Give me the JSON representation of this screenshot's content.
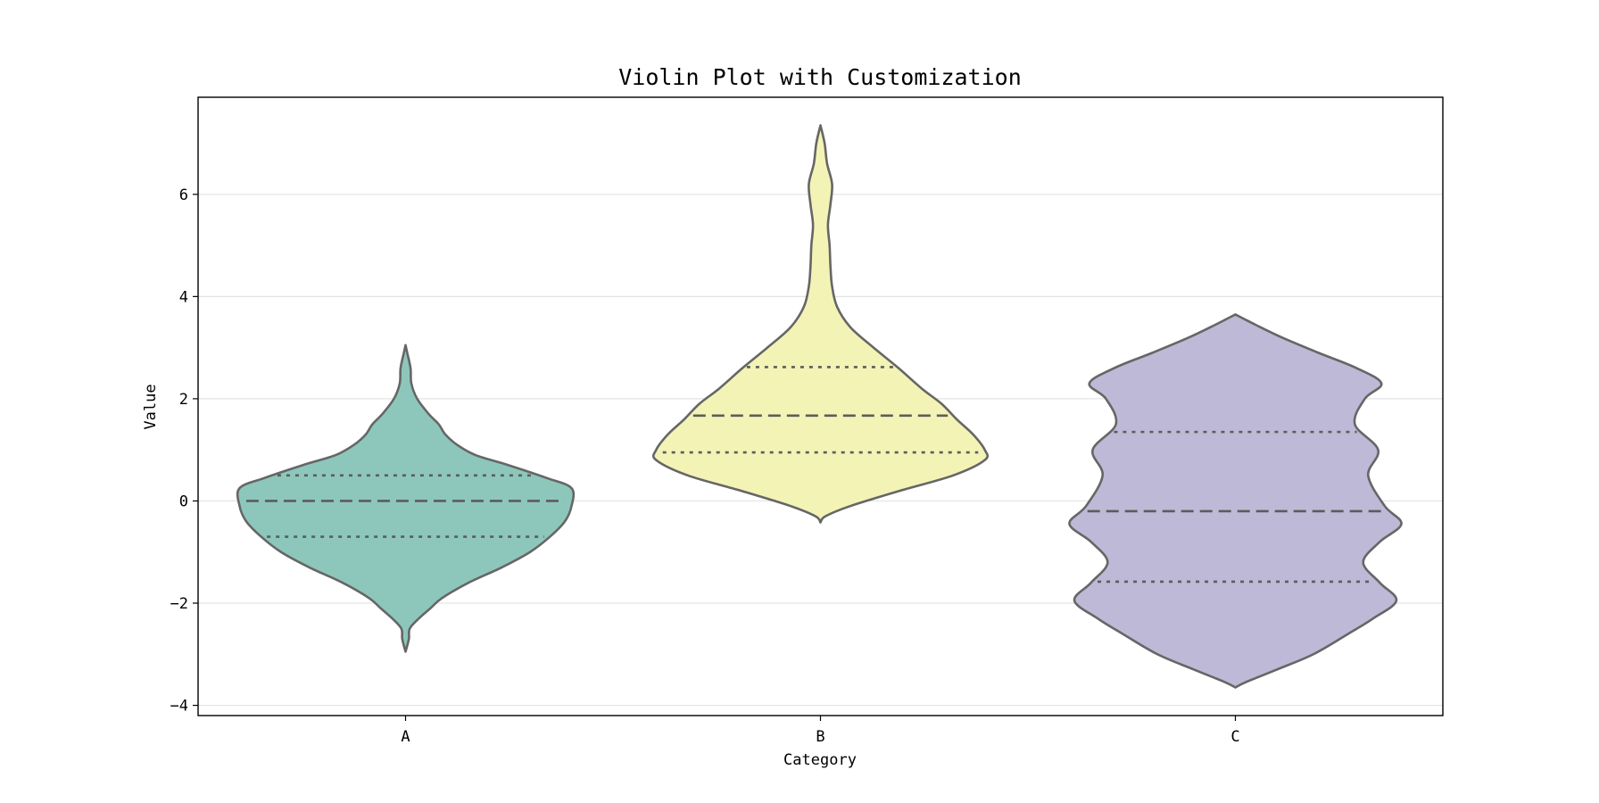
{
  "chart_data": {
    "type": "violin",
    "title": "Violin Plot with Customization",
    "xlabel": "Category",
    "ylabel": "Value",
    "categories": [
      "A",
      "B",
      "C"
    ],
    "ylim": [
      -4.2,
      7.9
    ],
    "yticks": [
      -4,
      -2,
      0,
      2,
      4,
      6
    ],
    "grid": "horizontal",
    "inner": "quartile",
    "series": [
      {
        "category": "A",
        "color": "#8dc7bb",
        "min": -2.95,
        "max": 3.05,
        "q1": -0.7,
        "median": 0.0,
        "q3": 0.5,
        "density": [
          [
            -2.95,
            0.0
          ],
          [
            -2.7,
            0.02
          ],
          [
            -2.5,
            0.025
          ],
          [
            -2.3,
            0.08
          ],
          [
            -2.1,
            0.15
          ],
          [
            -1.9,
            0.22
          ],
          [
            -1.6,
            0.38
          ],
          [
            -1.3,
            0.58
          ],
          [
            -1.0,
            0.75
          ],
          [
            -0.7,
            0.87
          ],
          [
            -0.4,
            0.96
          ],
          [
            -0.1,
            1.0
          ],
          [
            0.25,
            1.0
          ],
          [
            0.45,
            0.85
          ],
          [
            0.7,
            0.62
          ],
          [
            0.9,
            0.42
          ],
          [
            1.1,
            0.31
          ],
          [
            1.3,
            0.24
          ],
          [
            1.5,
            0.2
          ],
          [
            1.7,
            0.14
          ],
          [
            2.0,
            0.07
          ],
          [
            2.3,
            0.035
          ],
          [
            2.6,
            0.03
          ],
          [
            2.9,
            0.01
          ],
          [
            3.05,
            0.0
          ]
        ]
      },
      {
        "category": "B",
        "color": "#f3f3b6",
        "min": -0.42,
        "max": 7.35,
        "q1": 0.95,
        "median": 1.67,
        "q3": 2.62,
        "density": [
          [
            -0.42,
            0.0
          ],
          [
            -0.3,
            0.03
          ],
          [
            -0.1,
            0.18
          ],
          [
            0.2,
            0.48
          ],
          [
            0.5,
            0.8
          ],
          [
            0.8,
            0.99
          ],
          [
            1.0,
            0.99
          ],
          [
            1.3,
            0.92
          ],
          [
            1.6,
            0.82
          ],
          [
            1.9,
            0.73
          ],
          [
            2.2,
            0.61
          ],
          [
            2.6,
            0.47
          ],
          [
            3.0,
            0.32
          ],
          [
            3.4,
            0.18
          ],
          [
            3.8,
            0.1
          ],
          [
            4.2,
            0.07
          ],
          [
            4.6,
            0.06
          ],
          [
            5.0,
            0.055
          ],
          [
            5.4,
            0.045
          ],
          [
            5.8,
            0.06
          ],
          [
            6.2,
            0.07
          ],
          [
            6.6,
            0.04
          ],
          [
            7.0,
            0.025
          ],
          [
            7.35,
            0.0
          ]
        ]
      },
      {
        "category": "C",
        "color": "#bdb9d6",
        "min": -3.65,
        "max": 3.65,
        "q1": -1.58,
        "median": -0.2,
        "q3": 1.35,
        "density": [
          [
            -3.65,
            0.0
          ],
          [
            -3.55,
            0.06
          ],
          [
            -3.3,
            0.25
          ],
          [
            -3.0,
            0.47
          ],
          [
            -2.6,
            0.68
          ],
          [
            -2.3,
            0.83
          ],
          [
            -1.95,
            0.97
          ],
          [
            -1.6,
            0.87
          ],
          [
            -1.2,
            0.77
          ],
          [
            -0.8,
            0.87
          ],
          [
            -0.45,
            1.0
          ],
          [
            -0.1,
            0.9
          ],
          [
            0.5,
            0.8
          ],
          [
            1.0,
            0.86
          ],
          [
            1.5,
            0.72
          ],
          [
            2.0,
            0.78
          ],
          [
            2.3,
            0.88
          ],
          [
            2.6,
            0.73
          ],
          [
            2.9,
            0.5
          ],
          [
            3.2,
            0.28
          ],
          [
            3.45,
            0.12
          ],
          [
            3.65,
            0.0
          ]
        ]
      }
    ]
  }
}
